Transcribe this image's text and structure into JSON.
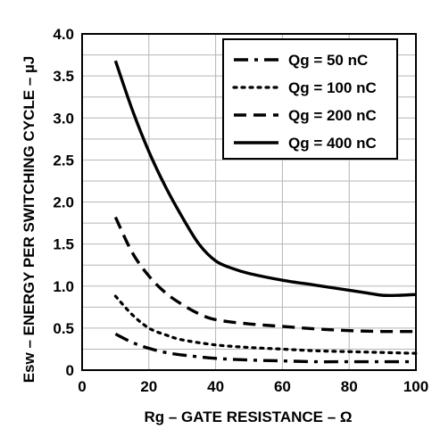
{
  "chart_data": {
    "type": "line",
    "title": "",
    "xlabel": "Rg – GATE RESISTANCE  – Ω",
    "ylabel": "Esw – ENERGY PER SWITCHING CYCLE – µJ",
    "xlim": [
      0,
      100
    ],
    "ylim": [
      0,
      4.0
    ],
    "x_ticks": [
      "0",
      "20",
      "40",
      "60",
      "80",
      "100"
    ],
    "y_ticks": [
      "0",
      "0.5",
      "1.0",
      "1.5",
      "2.0",
      "2.5",
      "3.0",
      "3.5",
      "4.0"
    ],
    "grid": true,
    "legend_position": "top-right",
    "series": [
      {
        "name": "Qg = 50 nC",
        "style": "dashdot",
        "x": [
          10,
          15,
          20,
          25,
          30,
          40,
          50,
          60,
          70,
          80,
          90,
          100
        ],
        "y": [
          0.43,
          0.33,
          0.26,
          0.21,
          0.18,
          0.14,
          0.12,
          0.11,
          0.1,
          0.1,
          0.1,
          0.1
        ]
      },
      {
        "name": "Qg = 100 nC",
        "style": "dotted",
        "x": [
          10,
          15,
          20,
          25,
          30,
          40,
          50,
          60,
          70,
          80,
          90,
          100
        ],
        "y": [
          0.88,
          0.66,
          0.5,
          0.42,
          0.36,
          0.3,
          0.27,
          0.25,
          0.23,
          0.22,
          0.21,
          0.2
        ]
      },
      {
        "name": "Qg = 200 nC",
        "style": "dashed",
        "x": [
          10,
          15,
          20,
          25,
          30,
          35,
          40,
          50,
          60,
          70,
          80,
          90,
          100
        ],
        "y": [
          1.82,
          1.4,
          1.12,
          0.92,
          0.78,
          0.67,
          0.6,
          0.55,
          0.52,
          0.49,
          0.47,
          0.46,
          0.46
        ]
      },
      {
        "name": "Qg = 400 nC",
        "style": "solid",
        "x": [
          10,
          15,
          20,
          25,
          30,
          35,
          40,
          45,
          50,
          60,
          70,
          80,
          85,
          90,
          95,
          100
        ],
        "y": [
          3.68,
          3.1,
          2.6,
          2.18,
          1.82,
          1.5,
          1.3,
          1.21,
          1.15,
          1.07,
          1.01,
          0.95,
          0.92,
          0.89,
          0.89,
          0.9
        ]
      }
    ]
  }
}
